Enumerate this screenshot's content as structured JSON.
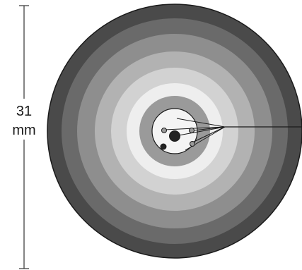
{
  "dimension": {
    "value": "31",
    "unit": "mm"
  },
  "colors": {
    "ring_outermost": "#4a4a4a",
    "ring_2": "#6a6a6a",
    "ring_3": "#8e8e8e",
    "ring_4": "#b2b2b2",
    "ring_5": "#d2d2d2",
    "ring_6": "#eeeeee",
    "ring_7": "#9a9a9a",
    "center_disc": "#f4f4f4",
    "outline": "#1a1a1a",
    "electrode_dark": "#222222",
    "electrode_grey": "#9a9a9a"
  },
  "rings": [
    {
      "name": "ring-1",
      "color_key": "ring_outermost"
    },
    {
      "name": "ring-2",
      "color_key": "ring_2"
    },
    {
      "name": "ring-3",
      "color_key": "ring_3"
    },
    {
      "name": "ring-4",
      "color_key": "ring_4"
    },
    {
      "name": "ring-5",
      "color_key": "ring_5"
    },
    {
      "name": "ring-6",
      "color_key": "ring_6"
    },
    {
      "name": "ring-7",
      "color_key": "ring_7"
    }
  ],
  "electrodes": [
    {
      "name": "electrode-large-center",
      "style": "dark"
    },
    {
      "name": "electrode-upper-left",
      "style": "grey"
    },
    {
      "name": "electrode-lower-left",
      "style": "dark"
    },
    {
      "name": "electrode-upper-right",
      "style": "grey"
    },
    {
      "name": "electrode-lower-right",
      "style": "grey"
    }
  ]
}
